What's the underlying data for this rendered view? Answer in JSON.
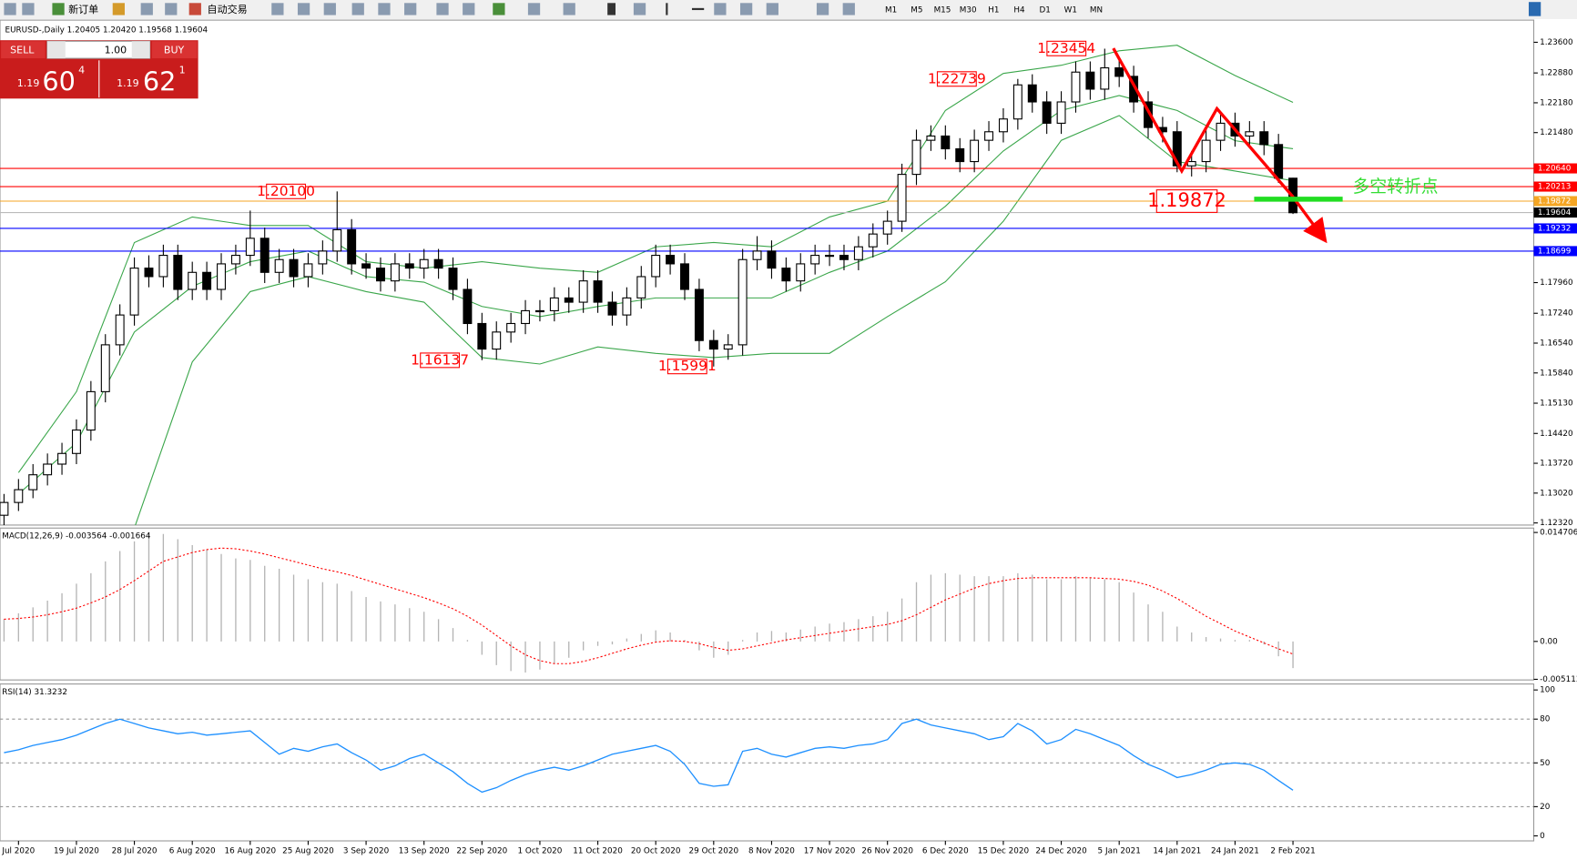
{
  "toolbar": {
    "new_order": "新订单",
    "auto_trading": "自动交易",
    "timeframes": [
      "M1",
      "M5",
      "M15",
      "M30",
      "H1",
      "H4",
      "D1",
      "W1",
      "MN"
    ]
  },
  "trade_panel": {
    "sell": "SELL",
    "lot": "1.00",
    "buy": "BUY",
    "sell_price": {
      "big": "1.19",
      "main": "60",
      "pip": "4"
    },
    "buy_price": {
      "big": "1.19",
      "main": "62",
      "pip": "1"
    }
  },
  "chart_data": [
    {
      "type": "candlestick",
      "title": "EURUSD-,Daily  1.20405 1.20420 1.19568 1.19604",
      "x": [
        null,
        "Jul 2020",
        null,
        null,
        null,
        "19 Jul 2020",
        null,
        null,
        null,
        "28 Jul 2020",
        null,
        null,
        null,
        "6 Aug 2020",
        null,
        null,
        null,
        "16 Aug 2020",
        null,
        null,
        null,
        "25 Aug 2020",
        null,
        null,
        null,
        "3 Sep 2020",
        null,
        null,
        null,
        "13 Sep 2020",
        null,
        null,
        null,
        "22 Sep 2020",
        null,
        null,
        null,
        "1 Oct 2020",
        null,
        null,
        null,
        "11 Oct 2020",
        null,
        null,
        null,
        "20 Oct 2020",
        null,
        null,
        null,
        "29 Oct 2020",
        null,
        null,
        null,
        "8 Nov 2020",
        null,
        null,
        null,
        "17 Nov 2020",
        null,
        null,
        null,
        "26 Nov 2020",
        null,
        null,
        null,
        "6 Dec 2020",
        null,
        null,
        null,
        "15 Dec 2020",
        null,
        null,
        null,
        "24 Dec 2020",
        null,
        null,
        null,
        "5 Jan 2021",
        null,
        null,
        null,
        "14 Jan 2021",
        null,
        null,
        null,
        "24 Jan 2021",
        null,
        null,
        null,
        "2 Feb 2021"
      ],
      "open": [
        1.125,
        1.128,
        1.131,
        1.1345,
        1.137,
        1.1395,
        1.145,
        1.154,
        1.165,
        1.172,
        1.183,
        1.181,
        1.186,
        1.178,
        1.182,
        1.178,
        1.184,
        1.186,
        1.19,
        1.182,
        1.185,
        1.181,
        1.184,
        1.187,
        1.192,
        1.184,
        1.183,
        1.18,
        1.184,
        1.183,
        1.185,
        1.183,
        1.178,
        1.17,
        1.164,
        1.168,
        1.17,
        1.173,
        1.173,
        1.176,
        1.175,
        1.18,
        1.175,
        1.172,
        1.176,
        1.181,
        1.186,
        1.184,
        1.178,
        1.166,
        1.164,
        1.165,
        1.185,
        1.187,
        1.183,
        1.18,
        1.184,
        1.186,
        1.186,
        1.185,
        1.188,
        1.191,
        1.194,
        1.205,
        1.213,
        1.214,
        1.211,
        1.208,
        1.213,
        1.215,
        1.218,
        1.226,
        1.222,
        1.217,
        1.222,
        1.229,
        1.225,
        1.23,
        1.228,
        1.222,
        1.216,
        1.215,
        1.207,
        1.208,
        1.213,
        1.217,
        1.214,
        1.215,
        1.212,
        1.2041
      ],
      "high": [
        1.13,
        1.1335,
        1.137,
        1.1395,
        1.142,
        1.1475,
        1.1565,
        1.1675,
        1.1745,
        1.1855,
        1.186,
        1.1885,
        1.1885,
        1.1845,
        1.1845,
        1.1865,
        1.1885,
        1.1965,
        1.1925,
        1.1875,
        1.1875,
        1.1865,
        1.1895,
        1.201,
        1.1945,
        1.1865,
        1.1855,
        1.1865,
        1.1865,
        1.1875,
        1.1875,
        1.1855,
        1.1805,
        1.1725,
        1.1705,
        1.1725,
        1.1755,
        1.1755,
        1.1785,
        1.1785,
        1.1825,
        1.1825,
        1.1775,
        1.1785,
        1.1835,
        1.1885,
        1.1885,
        1.1865,
        1.1805,
        1.1685,
        1.1675,
        1.1875,
        1.1905,
        1.1895,
        1.1855,
        1.1865,
        1.1885,
        1.1885,
        1.1885,
        1.1905,
        1.1935,
        1.1965,
        1.2075,
        1.2155,
        1.2165,
        1.2165,
        1.2135,
        1.2155,
        1.2175,
        1.2205,
        1.2274,
        1.2285,
        1.2245,
        1.2245,
        1.2315,
        1.2315,
        1.2345,
        1.2325,
        1.2305,
        1.2245,
        1.2185,
        1.2175,
        1.2105,
        1.2155,
        1.2195,
        1.2195,
        1.2175,
        1.2175,
        1.2145,
        1.2042
      ],
      "low": [
        1.1225,
        1.126,
        1.129,
        1.132,
        1.1345,
        1.137,
        1.1425,
        1.1515,
        1.1625,
        1.1695,
        1.1785,
        1.1785,
        1.1755,
        1.1755,
        1.1755,
        1.1755,
        1.1815,
        1.1835,
        1.1795,
        1.1795,
        1.1785,
        1.1785,
        1.1815,
        1.1845,
        1.1815,
        1.1805,
        1.1775,
        1.1775,
        1.1805,
        1.1805,
        1.1805,
        1.1755,
        1.1675,
        1.1614,
        1.1615,
        1.1655,
        1.1675,
        1.1705,
        1.1705,
        1.1725,
        1.1725,
        1.1725,
        1.1695,
        1.1695,
        1.1735,
        1.1785,
        1.1815,
        1.1755,
        1.1635,
        1.1599,
        1.1615,
        1.1625,
        1.1825,
        1.1805,
        1.1775,
        1.1775,
        1.1815,
        1.1835,
        1.1825,
        1.1825,
        1.1855,
        1.1885,
        1.1915,
        1.2025,
        1.2105,
        1.2085,
        1.2055,
        1.2055,
        1.2105,
        1.2125,
        1.2155,
        1.2195,
        1.2145,
        1.2145,
        1.2195,
        1.2225,
        1.2225,
        1.2255,
        1.2195,
        1.2135,
        1.2125,
        1.2055,
        1.2045,
        1.2055,
        1.2105,
        1.2115,
        1.2115,
        1.2095,
        1.203,
        1.1957
      ],
      "close": [
        1.128,
        1.131,
        1.1345,
        1.137,
        1.1395,
        1.145,
        1.154,
        1.165,
        1.172,
        1.183,
        1.181,
        1.186,
        1.178,
        1.182,
        1.178,
        1.184,
        1.186,
        1.19,
        1.182,
        1.185,
        1.181,
        1.184,
        1.187,
        1.192,
        1.184,
        1.183,
        1.18,
        1.184,
        1.183,
        1.185,
        1.183,
        1.178,
        1.17,
        1.164,
        1.168,
        1.17,
        1.173,
        1.173,
        1.176,
        1.175,
        1.18,
        1.175,
        1.172,
        1.176,
        1.181,
        1.186,
        1.184,
        1.178,
        1.166,
        1.164,
        1.165,
        1.185,
        1.187,
        1.183,
        1.18,
        1.184,
        1.186,
        1.186,
        1.185,
        1.188,
        1.191,
        1.194,
        1.205,
        1.213,
        1.214,
        1.211,
        1.208,
        1.213,
        1.215,
        1.218,
        1.226,
        1.222,
        1.217,
        1.222,
        1.229,
        1.225,
        1.23,
        1.228,
        1.222,
        1.216,
        1.215,
        1.207,
        1.208,
        1.213,
        1.217,
        1.214,
        1.215,
        1.212,
        1.2041,
        1.196
      ],
      "ylim": [
        1.1227,
        1.2412
      ],
      "yticks": [
        {
          "value": 1.236,
          "label": "1.23600"
        },
        {
          "value": 1.2288,
          "label": "1.22880"
        },
        {
          "value": 1.2218,
          "label": "1.22180"
        },
        {
          "value": 1.2148,
          "label": "1.21480"
        },
        {
          "value": 1.1796,
          "label": "1.17960"
        },
        {
          "value": 1.1724,
          "label": "1.17240"
        },
        {
          "value": 1.1654,
          "label": "1.16540"
        },
        {
          "value": 1.1584,
          "label": "1.15840"
        },
        {
          "value": 1.1513,
          "label": "1.15130"
        },
        {
          "value": 1.1442,
          "label": "1.14420"
        },
        {
          "value": 1.1372,
          "label": "1.13720"
        },
        {
          "value": 1.1302,
          "label": "1.13020"
        },
        {
          "value": 1.1232,
          "label": "1.12320"
        }
      ],
      "series": [
        {
          "color": "#3aa64a",
          "x": [
            "Jul 2020",
            "19 Jul 2020",
            "28 Jul 2020",
            "6 Aug 2020",
            "16 Aug 2020",
            "25 Aug 2020",
            "3 Sep 2020",
            "13 Sep 2020",
            "22 Sep 2020",
            "1 Oct 2020",
            "11 Oct 2020",
            "20 Oct 2020",
            "29 Oct 2020",
            "8 Nov 2020",
            "17 Nov 2020",
            "26 Nov 2020",
            "6 Dec 2020",
            "15 Dec 2020",
            "24 Dec 2020",
            "5 Jan 2021",
            "14 Jan 2021",
            "24 Jan 2021",
            "2 Feb 2021"
          ],
          "values": [
            1.135,
            1.154,
            1.189,
            1.195,
            1.193,
            1.193,
            1.1845,
            1.183,
            1.1845,
            1.183,
            1.182,
            1.188,
            1.189,
            1.188,
            1.195,
            1.1987,
            1.22,
            1.2287,
            1.2306,
            1.234,
            1.2353,
            1.2282,
            1.2219
          ]
        },
        {
          "color": "#3aa64a",
          "x": [
            "Jul 2020",
            "19 Jul 2020",
            "28 Jul 2020",
            "6 Aug 2020",
            "16 Aug 2020",
            "25 Aug 2020",
            "3 Sep 2020",
            "13 Sep 2020",
            "22 Sep 2020",
            "1 Oct 2020",
            "11 Oct 2020",
            "20 Oct 2020",
            "29 Oct 2020",
            "8 Nov 2020",
            "17 Nov 2020",
            "26 Nov 2020",
            "6 Dec 2020",
            "15 Dec 2020",
            "24 Dec 2020",
            "5 Jan 2021",
            "14 Jan 2021",
            "24 Jan 2021",
            "2 Feb 2021"
          ],
          "values": [
            1.13,
            1.142,
            1.168,
            1.1787,
            1.1845,
            1.187,
            1.181,
            1.1797,
            1.174,
            1.1716,
            1.174,
            1.176,
            1.176,
            1.176,
            1.182,
            1.187,
            1.1975,
            1.2105,
            1.22,
            1.2235,
            1.22,
            1.2129,
            1.211
          ]
        },
        {
          "color": "#3aa64a",
          "x": [
            "Jul 2020",
            "19 Jul 2020",
            "28 Jul 2020",
            "6 Aug 2020",
            "16 Aug 2020",
            "25 Aug 2020",
            "3 Sep 2020",
            "13 Sep 2020",
            "22 Sep 2020",
            "1 Oct 2020",
            "11 Oct 2020",
            "20 Oct 2020",
            "29 Oct 2020",
            "8 Nov 2020",
            "17 Nov 2020",
            "26 Nov 2020",
            "6 Dec 2020",
            "15 Dec 2020",
            "24 Dec 2020",
            "5 Jan 2021",
            "14 Jan 2021",
            "24 Jan 2021",
            "2 Feb 2021"
          ],
          "values": [
            null,
            null,
            1.122,
            1.161,
            1.1775,
            1.181,
            1.1775,
            1.175,
            1.162,
            1.1605,
            1.1645,
            1.163,
            1.162,
            1.163,
            1.163,
            1.1716,
            1.1798,
            1.194,
            1.213,
            1.2188,
            1.208,
            1.2058,
            1.2035
          ]
        }
      ],
      "levels": [
        {
          "value": 1.2064,
          "label": "1.20640",
          "color": "#ff0000"
        },
        {
          "value": 1.20213,
          "label": "1.20213",
          "color": "#ff0000"
        },
        {
          "value": 1.19872,
          "label": "1.19872",
          "color": "#f5a623"
        },
        {
          "value": 1.19604,
          "label": "1.19604",
          "color": "#000000"
        },
        {
          "value": 1.19232,
          "label": "1.19232",
          "color": "#0000ff"
        },
        {
          "value": 1.18699,
          "label": "1.18699",
          "color": "#0000ff"
        }
      ],
      "annotations": [
        {
          "value": 1.201,
          "label": "1.20100"
        },
        {
          "value": 1.16137,
          "label": "1.16137"
        },
        {
          "value": 1.15991,
          "label": "1.15991"
        },
        {
          "value": 1.22739,
          "label": "1.22739"
        },
        {
          "value": 1.23454,
          "label": "1.23454"
        },
        {
          "value": 1.19872,
          "label": "1.19872"
        }
      ],
      "note": "多空转折点"
    },
    {
      "type": "macd",
      "title": "MACD(12,26,9) -0.003564 -0.001664",
      "ylim": [
        -0.0052,
        0.0153
      ],
      "yticks": [
        {
          "value": 0.014706,
          "label": "0.014706"
        },
        {
          "value": 0,
          "label": "0.00"
        },
        {
          "value": -0.005113,
          "label": "-0.005113"
        }
      ],
      "series": [
        {
          "color": "#b4b4b4",
          "values": [
            0.003,
            0.0038,
            0.0046,
            0.0055,
            0.0065,
            0.0078,
            0.0092,
            0.0108,
            0.0122,
            0.0135,
            0.0147,
            0.0145,
            0.0138,
            0.013,
            0.0124,
            0.0118,
            0.0112,
            0.011,
            0.0102,
            0.0098,
            0.009,
            0.0084,
            0.008,
            0.0078,
            0.0068,
            0.006,
            0.0054,
            0.005,
            0.0045,
            0.004,
            0.003,
            0.0018,
            0.0002,
            -0.0018,
            -0.0032,
            -0.004,
            -0.0042,
            -0.0038,
            -0.003,
            -0.0022,
            -0.0012,
            -0.0006,
            -0.0004,
            0.0004,
            0.001,
            0.0015,
            0.0012,
            0.0002,
            -0.0012,
            -0.0022,
            -0.0018,
            0.0002,
            0.0012,
            0.0014,
            0.0012,
            0.0016,
            0.002,
            0.0024,
            0.0026,
            0.003,
            0.0034,
            0.004,
            0.0058,
            0.008,
            0.009,
            0.0092,
            0.009,
            0.0088,
            0.0088,
            0.0088,
            0.0092,
            0.009,
            0.0084,
            0.0084,
            0.0088,
            0.0086,
            0.0084,
            0.008,
            0.0066,
            0.005,
            0.004,
            0.002,
            0.0012,
            0.0006,
            0.0004,
            0.0002,
            0.0002,
            -0.0004,
            -0.002,
            -0.0036
          ]
        },
        {
          "color": "#ff0000",
          "values": [
            0.003,
            0.0031,
            0.0033,
            0.0036,
            0.004,
            0.0045,
            0.0052,
            0.006,
            0.007,
            0.0082,
            0.0095,
            0.0108,
            0.0114,
            0.012,
            0.0124,
            0.0126,
            0.0125,
            0.0122,
            0.0118,
            0.0113,
            0.0108,
            0.0103,
            0.0098,
            0.0094,
            0.0089,
            0.0083,
            0.0077,
            0.0071,
            0.0065,
            0.0059,
            0.0052,
            0.0044,
            0.0034,
            0.0022,
            0.0008,
            -0.0006,
            -0.0018,
            -0.0026,
            -0.003,
            -0.003,
            -0.0027,
            -0.0022,
            -0.0016,
            -0.001,
            -0.0005,
            -0.0001,
            0.0001,
            0.0,
            -0.0003,
            -0.0008,
            -0.0012,
            -0.001,
            -0.0006,
            -0.0002,
            0.0002,
            0.0005,
            0.0008,
            0.0011,
            0.0014,
            0.0017,
            0.002,
            0.0023,
            0.0028,
            0.0036,
            0.0046,
            0.0056,
            0.0064,
            0.0072,
            0.0078,
            0.0082,
            0.0085,
            0.0086,
            0.0086,
            0.0086,
            0.0086,
            0.0086,
            0.0085,
            0.0084,
            0.0081,
            0.0076,
            0.0068,
            0.0058,
            0.0046,
            0.0034,
            0.0024,
            0.0014,
            0.0006,
            -0.0002,
            -0.001,
            -0.0017
          ]
        }
      ]
    },
    {
      "type": "line",
      "title": "RSI(14) 31.3232",
      "ylim": [
        -3.45,
        104.1
      ],
      "yticks": [
        100,
        80,
        50,
        20,
        0
      ],
      "levels": [
        80,
        50,
        20
      ],
      "series": [
        {
          "color": "#1e90ff",
          "values": [
            57,
            59,
            62,
            64,
            66,
            69,
            73,
            77,
            80,
            77,
            74,
            72,
            70,
            71,
            69,
            70,
            71,
            72,
            64,
            56,
            60,
            58,
            61,
            63,
            57,
            52,
            45,
            48,
            53,
            56,
            50,
            44,
            36,
            30,
            33,
            38,
            42,
            45,
            47,
            45,
            48,
            52,
            56,
            58,
            60,
            62,
            58,
            49,
            36,
            34,
            35,
            58,
            60,
            56,
            54,
            57,
            60,
            61,
            60,
            62,
            63,
            66,
            77,
            80,
            76,
            74,
            72,
            70,
            66,
            68,
            77,
            72,
            63,
            66,
            73,
            70,
            66,
            62,
            55,
            49,
            45,
            40,
            42,
            45,
            49,
            50,
            49,
            45,
            38,
            31.3232
          ]
        }
      ]
    }
  ]
}
